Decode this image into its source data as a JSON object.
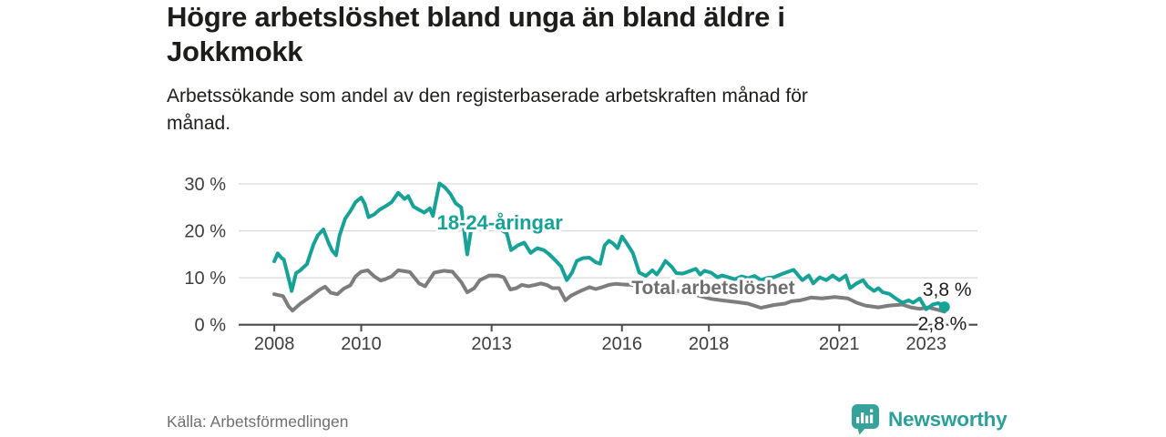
{
  "header": {
    "title": "Högre arbetslöshet bland unga än bland äldre i\nJokkmokk",
    "subtitle": "Arbetssökande som andel av den registerbaserade arbetskraften månad för\nmånad."
  },
  "footer": {
    "source": "Källa: Arbetsförmedlingen",
    "brand_name": "Newsworthy",
    "brand_icon": "newsworthy-speech-bubble-bar-chart-icon"
  },
  "colors": {
    "youth": "#17a297",
    "total": "#7d7d7d",
    "axis": "#4a4a4a",
    "grid": "#d9d9d9",
    "tick_text": "#3e3e3e",
    "value_text": "#1d1d1b",
    "brand": "#2b9f99"
  },
  "chart_data": {
    "type": "line",
    "title": "Högre arbetslöshet bland unga än bland äldre i Jokkmokk",
    "subtitle": "Arbetssökande som andel av den registerbaserade arbetskraften månad för månad.",
    "source": "Källa: Arbetsförmedlingen",
    "unit": "%",
    "grid": true,
    "legend_position": "inline-labels",
    "x_axis": {
      "range": [
        2007.18,
        2024.18
      ],
      "ticks": [
        2008,
        2010,
        2013,
        2016,
        2018,
        2021,
        2023
      ],
      "tick_labels": [
        "2008",
        "2010",
        "2013",
        "2016",
        "2018",
        "2021",
        "2023"
      ]
    },
    "y_axis": {
      "range": [
        0,
        30
      ],
      "ticks": [
        0,
        10,
        20,
        30
      ],
      "tick_labels": [
        "0 %",
        "10 %",
        "20 %",
        "30 %"
      ]
    },
    "series": [
      {
        "id": "total",
        "name": "Total arbetslöshet",
        "color": "#7d7d7d",
        "end_value_label": "2,8 %",
        "end_dot": false,
        "points": [
          [
            2008.0,
            6.5
          ],
          [
            2008.2,
            6.1
          ],
          [
            2008.33,
            3.9
          ],
          [
            2008.42,
            3.0
          ],
          [
            2008.6,
            4.5
          ],
          [
            2008.85,
            6.1
          ],
          [
            2009.03,
            7.4
          ],
          [
            2009.17,
            8.1
          ],
          [
            2009.3,
            6.8
          ],
          [
            2009.45,
            6.5
          ],
          [
            2009.6,
            7.7
          ],
          [
            2009.75,
            8.4
          ],
          [
            2009.87,
            10.3
          ],
          [
            2010.0,
            11.3
          ],
          [
            2010.15,
            11.6
          ],
          [
            2010.3,
            10.3
          ],
          [
            2010.45,
            9.4
          ],
          [
            2010.55,
            9.7
          ],
          [
            2010.7,
            10.3
          ],
          [
            2010.85,
            11.6
          ],
          [
            2011.0,
            11.4
          ],
          [
            2011.12,
            11.2
          ],
          [
            2011.33,
            8.8
          ],
          [
            2011.47,
            8.2
          ],
          [
            2011.68,
            11.1
          ],
          [
            2011.9,
            11.5
          ],
          [
            2012.1,
            11.3
          ],
          [
            2012.3,
            9.1
          ],
          [
            2012.44,
            6.9
          ],
          [
            2012.6,
            7.8
          ],
          [
            2012.73,
            9.5
          ],
          [
            2012.95,
            10.5
          ],
          [
            2013.15,
            10.5
          ],
          [
            2013.28,
            10.1
          ],
          [
            2013.43,
            7.5
          ],
          [
            2013.57,
            7.8
          ],
          [
            2013.7,
            8.5
          ],
          [
            2013.85,
            8.2
          ],
          [
            2014.0,
            8.5
          ],
          [
            2014.13,
            8.8
          ],
          [
            2014.27,
            8.5
          ],
          [
            2014.4,
            7.8
          ],
          [
            2014.55,
            7.8
          ],
          [
            2014.7,
            5.2
          ],
          [
            2014.83,
            6.2
          ],
          [
            2015.05,
            7.2
          ],
          [
            2015.25,
            8.0
          ],
          [
            2015.4,
            7.6
          ],
          [
            2015.55,
            8.0
          ],
          [
            2015.7,
            8.5
          ],
          [
            2015.85,
            8.7
          ],
          [
            2016.0,
            8.6
          ],
          [
            2016.2,
            8.5
          ],
          [
            2016.5,
            8.2
          ],
          [
            2016.8,
            7.8
          ],
          [
            2017.0,
            7.6
          ],
          [
            2017.3,
            7.2
          ],
          [
            2017.6,
            6.6
          ],
          [
            2017.85,
            6.0
          ],
          [
            2018.05,
            5.5
          ],
          [
            2018.3,
            5.2
          ],
          [
            2018.65,
            4.8
          ],
          [
            2018.9,
            4.5
          ],
          [
            2019.2,
            3.6
          ],
          [
            2019.5,
            4.2
          ],
          [
            2019.75,
            4.5
          ],
          [
            2019.9,
            5.0
          ],
          [
            2020.1,
            5.2
          ],
          [
            2020.35,
            5.8
          ],
          [
            2020.6,
            5.6
          ],
          [
            2020.9,
            5.9
          ],
          [
            2021.2,
            5.6
          ],
          [
            2021.4,
            4.7
          ],
          [
            2021.6,
            4.1
          ],
          [
            2021.9,
            3.7
          ],
          [
            2022.15,
            4.1
          ],
          [
            2022.45,
            4.3
          ],
          [
            2022.65,
            3.7
          ],
          [
            2022.85,
            3.4
          ],
          [
            2023.05,
            3.7
          ],
          [
            2023.3,
            3.1
          ],
          [
            2023.42,
            2.8
          ]
        ]
      },
      {
        "id": "youth",
        "name": "18-24-åringar",
        "color": "#17a297",
        "end_value_label": "3,8 %",
        "end_dot": true,
        "points": [
          [
            2008.0,
            13.5
          ],
          [
            2008.08,
            15.2
          ],
          [
            2008.17,
            14.2
          ],
          [
            2008.22,
            13.9
          ],
          [
            2008.3,
            11.0
          ],
          [
            2008.4,
            7.2
          ],
          [
            2008.5,
            11.0
          ],
          [
            2008.6,
            11.6
          ],
          [
            2008.75,
            12.9
          ],
          [
            2008.9,
            17.1
          ],
          [
            2009.0,
            19.0
          ],
          [
            2009.13,
            20.3
          ],
          [
            2009.25,
            17.4
          ],
          [
            2009.33,
            15.8
          ],
          [
            2009.42,
            14.8
          ],
          [
            2009.5,
            19.0
          ],
          [
            2009.63,
            22.6
          ],
          [
            2009.75,
            24.2
          ],
          [
            2009.87,
            26.1
          ],
          [
            2010.0,
            27.1
          ],
          [
            2010.08,
            25.8
          ],
          [
            2010.17,
            22.9
          ],
          [
            2010.3,
            23.5
          ],
          [
            2010.42,
            24.5
          ],
          [
            2010.55,
            25.2
          ],
          [
            2010.7,
            26.1
          ],
          [
            2010.85,
            28.1
          ],
          [
            2011.0,
            26.8
          ],
          [
            2011.08,
            27.4
          ],
          [
            2011.2,
            25.2
          ],
          [
            2011.33,
            24.5
          ],
          [
            2011.45,
            23.9
          ],
          [
            2011.58,
            24.8
          ],
          [
            2011.65,
            23.2
          ],
          [
            2011.8,
            30.1
          ],
          [
            2011.92,
            29.3
          ],
          [
            2012.05,
            27.9
          ],
          [
            2012.17,
            25.9
          ],
          [
            2012.3,
            25.0
          ],
          [
            2012.44,
            15.0
          ],
          [
            2012.55,
            21.5
          ],
          [
            2012.7,
            22.5
          ],
          [
            2012.85,
            21.8
          ],
          [
            2013.0,
            21.0
          ],
          [
            2013.2,
            20.3
          ],
          [
            2013.35,
            19.5
          ],
          [
            2013.45,
            15.9
          ],
          [
            2013.6,
            16.9
          ],
          [
            2013.75,
            17.5
          ],
          [
            2013.9,
            15.3
          ],
          [
            2014.05,
            16.3
          ],
          [
            2014.2,
            15.9
          ],
          [
            2014.33,
            15.0
          ],
          [
            2014.48,
            13.6
          ],
          [
            2014.6,
            12.4
          ],
          [
            2014.73,
            9.5
          ],
          [
            2014.85,
            11.1
          ],
          [
            2014.96,
            13.6
          ],
          [
            2015.1,
            14.2
          ],
          [
            2015.25,
            14.3
          ],
          [
            2015.4,
            13.3
          ],
          [
            2015.5,
            13.0
          ],
          [
            2015.6,
            16.9
          ],
          [
            2015.7,
            17.9
          ],
          [
            2015.8,
            17.3
          ],
          [
            2015.9,
            16.3
          ],
          [
            2016.0,
            18.8
          ],
          [
            2016.1,
            17.5
          ],
          [
            2016.25,
            15.3
          ],
          [
            2016.4,
            11.1
          ],
          [
            2016.55,
            10.4
          ],
          [
            2016.7,
            11.6
          ],
          [
            2016.8,
            10.7
          ],
          [
            2016.9,
            12.0
          ],
          [
            2017.0,
            13.6
          ],
          [
            2017.15,
            12.3
          ],
          [
            2017.25,
            11.0
          ],
          [
            2017.4,
            10.9
          ],
          [
            2017.55,
            11.4
          ],
          [
            2017.7,
            11.9
          ],
          [
            2017.8,
            10.7
          ],
          [
            2017.9,
            11.5
          ],
          [
            2018.05,
            11.1
          ],
          [
            2018.2,
            10.1
          ],
          [
            2018.3,
            10.5
          ],
          [
            2018.45,
            10.1
          ],
          [
            2018.6,
            9.7
          ],
          [
            2018.75,
            10.3
          ],
          [
            2018.9,
            9.9
          ],
          [
            2019.05,
            10.4
          ],
          [
            2019.2,
            9.5
          ],
          [
            2019.35,
            10.0
          ],
          [
            2019.5,
            10.1
          ],
          [
            2019.65,
            10.7
          ],
          [
            2019.8,
            11.2
          ],
          [
            2019.95,
            11.7
          ],
          [
            2020.15,
            9.5
          ],
          [
            2020.3,
            10.5
          ],
          [
            2020.4,
            8.8
          ],
          [
            2020.55,
            10.1
          ],
          [
            2020.7,
            9.5
          ],
          [
            2020.85,
            10.5
          ],
          [
            2021.0,
            9.5
          ],
          [
            2021.15,
            10.5
          ],
          [
            2021.25,
            7.8
          ],
          [
            2021.4,
            8.8
          ],
          [
            2021.55,
            9.5
          ],
          [
            2021.65,
            8.2
          ],
          [
            2021.8,
            7.2
          ],
          [
            2021.9,
            7.8
          ],
          [
            2022.0,
            6.9
          ],
          [
            2022.15,
            6.6
          ],
          [
            2022.3,
            5.6
          ],
          [
            2022.45,
            4.7
          ],
          [
            2022.6,
            5.2
          ],
          [
            2022.7,
            4.7
          ],
          [
            2022.85,
            5.6
          ],
          [
            2023.0,
            3.3
          ],
          [
            2023.15,
            4.3
          ],
          [
            2023.28,
            4.6
          ],
          [
            2023.42,
            3.8
          ]
        ]
      }
    ],
    "annotations": [
      {
        "id": "youth-label",
        "text": "18-24-åringar",
        "x": 2013.19,
        "y": 21.7,
        "anchor": "middle",
        "bold": true,
        "size": 22,
        "color": "#17a297"
      },
      {
        "id": "total-label",
        "text": "Total arbetslöshet",
        "x": 2018.1,
        "y": 7.9,
        "anchor": "middle",
        "bold": true,
        "size": 21,
        "color": "#6e6e6e"
      },
      {
        "id": "youth-end-value",
        "text": "3,8 %",
        "x": 2022.92,
        "y": 7.5,
        "anchor": "start",
        "bold": false,
        "size": 21,
        "color": "#1d1d1b"
      },
      {
        "id": "total-end-value",
        "text": "2,8 %",
        "x": 2022.81,
        "y": 0.25,
        "anchor": "start",
        "bold": false,
        "size": 21,
        "color": "#1d1d1b"
      }
    ]
  }
}
